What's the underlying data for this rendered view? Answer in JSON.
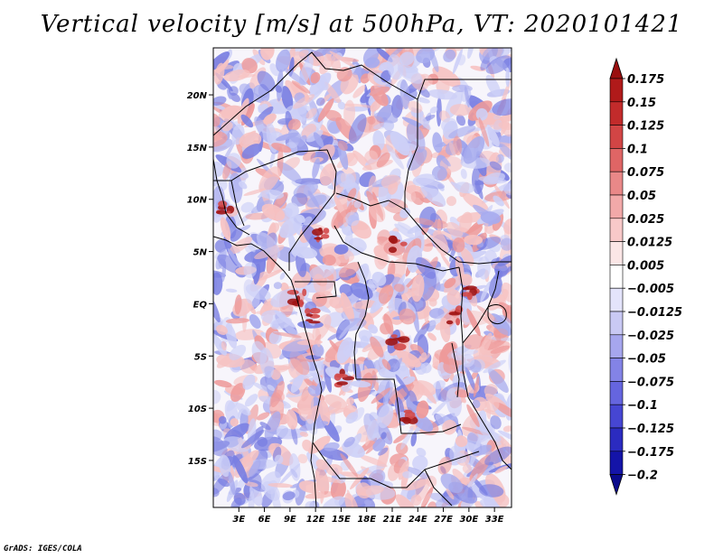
{
  "title": "Vertical velocity [m/s] at 500hPa, VT: 2020101421",
  "credit": "GrADS: IGES/COLA",
  "map": {
    "lon_ticks": [
      "3E",
      "6E",
      "9E",
      "12E",
      "15E",
      "18E",
      "21E",
      "24E",
      "27E",
      "30E",
      "33E"
    ],
    "lat_ticks": [
      "20N",
      "15N",
      "10N",
      "5N",
      "EQ",
      "5S",
      "10S",
      "15S"
    ],
    "extent": {
      "lon_min": 0,
      "lon_max": 35,
      "lat_min": -19.5,
      "lat_max": 24.5
    }
  },
  "colorbar": {
    "levels": [
      "0.175",
      "0.15",
      "0.125",
      "0.1",
      "0.075",
      "0.05",
      "0.025",
      "0.0125",
      "0.005",
      "−0.005",
      "−0.0125",
      "−0.025",
      "−0.05",
      "−0.075",
      "−0.1",
      "−0.125",
      "−0.175",
      "−0.2"
    ],
    "colors": [
      "#9a0f0f",
      "#b01a1a",
      "#c22b2b",
      "#d24545",
      "#df6565",
      "#e98888",
      "#f2a9a9",
      "#f8c9c9",
      "#fbe6e6",
      "#ffffff",
      "#e4e4fb",
      "#c9c9f4",
      "#a6a6ee",
      "#8383e6",
      "#6565df",
      "#4646d3",
      "#2b2bc0",
      "#1414a8",
      "#0a0a8c"
    ]
  },
  "field_colors": {
    "pos_weak": "#f6c2c2",
    "pos_mod": "#ee9a9a",
    "pos_strong": "#d34a4a",
    "pos_max": "#a01515",
    "neg_weak": "#cdd0f7",
    "neg_mod": "#a7abee",
    "neg_strong": "#7a7fe2",
    "neutral": "#f7f5fb"
  }
}
